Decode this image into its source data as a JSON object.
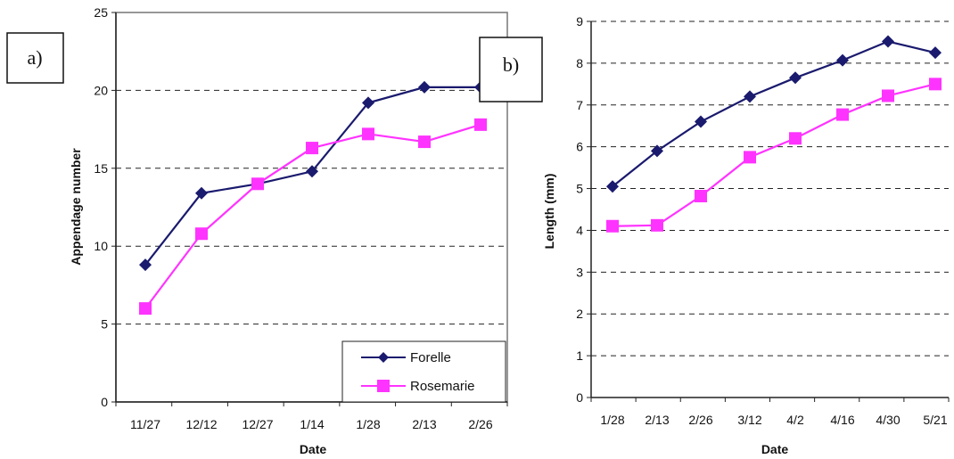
{
  "panels": [
    {
      "label": "a)"
    },
    {
      "label": "b)"
    }
  ],
  "legend": [
    "Forelle",
    "Rosemarie"
  ],
  "colors": {
    "forelle": "#1a1a6e",
    "rosemarie": "#ff33ff"
  },
  "chart_data": [
    {
      "type": "line",
      "xlabel": "Date",
      "ylabel": "Appendage number",
      "categories": [
        "11/27",
        "12/12",
        "12/27",
        "1/14",
        "1/28",
        "2/13",
        "2/26"
      ],
      "ylim": [
        0,
        25
      ],
      "yticks": [
        0,
        5,
        10,
        15,
        20,
        25
      ],
      "grid": "horizontal dashed",
      "legend_position": "bottom-right",
      "series": [
        {
          "name": "Forelle",
          "values": [
            8.8,
            13.4,
            14.0,
            14.8,
            19.2,
            20.2,
            20.2
          ]
        },
        {
          "name": "Rosemarie",
          "values": [
            6.0,
            10.8,
            14.0,
            16.3,
            17.2,
            16.7,
            17.8
          ]
        }
      ]
    },
    {
      "type": "line",
      "xlabel": "Date",
      "ylabel": "Length (mm)",
      "categories": [
        "1/28",
        "2/13",
        "2/26",
        "3/12",
        "4/2",
        "4/16",
        "4/30",
        "5/21"
      ],
      "ylim": [
        0,
        9
      ],
      "yticks": [
        0,
        1,
        2,
        3,
        4,
        5,
        6,
        7,
        8,
        9
      ],
      "grid": "horizontal dashed",
      "series": [
        {
          "name": "Forelle",
          "values": [
            5.05,
            5.9,
            6.6,
            7.2,
            7.65,
            8.07,
            8.52,
            8.25
          ]
        },
        {
          "name": "Rosemarie",
          "values": [
            4.1,
            4.12,
            4.82,
            5.75,
            6.2,
            6.77,
            7.22,
            7.5
          ]
        }
      ]
    }
  ]
}
